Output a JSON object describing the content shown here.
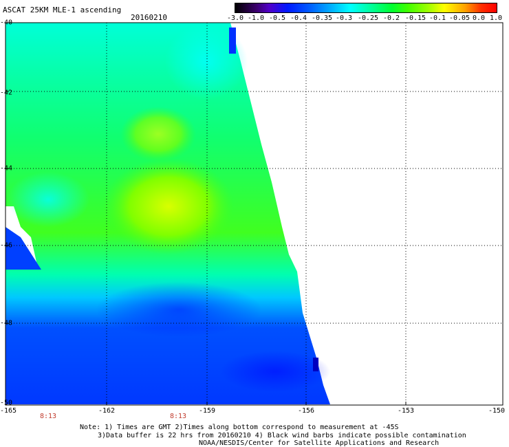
{
  "header": {
    "title": "ASCAT 25KM MLE-1 ascending",
    "date": "20160210"
  },
  "colorbar": {
    "ticks": [
      "-3.0",
      "-1.0",
      "-0.5",
      "-0.4",
      "-0.35",
      "-0.3",
      "-0.25",
      "-0.2",
      "-0.15",
      "-0.1",
      "-0.05",
      "0.0",
      "1.0"
    ]
  },
  "axes": {
    "lat_labels": [
      "-40",
      "-42",
      "-44",
      "-46",
      "-48",
      "-50"
    ],
    "lon_labels": [
      "-165",
      "-162",
      "-159",
      "-156",
      "-153",
      "-150"
    ],
    "lat_values": [
      -40,
      -42,
      -44,
      -46,
      -48,
      -50
    ],
    "lon_values": [
      -165,
      -162,
      -159,
      -156,
      -153,
      -150
    ]
  },
  "times": [
    "8:13",
    "8:13"
  ],
  "notes": {
    "line1": "Note: 1) Times are GMT 2)Times along bottom correspond to measurement at -45S",
    "line2": "3)Data buffer is 22 hrs from 20160210 4) Black wind barbs indicate possible contamination",
    "line3": "NOAA/NESDIS/Center for Satellite Applications and Research"
  },
  "colors": {
    "low": "#0030ff",
    "mid": "#00ffd0",
    "high": "#c8ff00"
  }
}
